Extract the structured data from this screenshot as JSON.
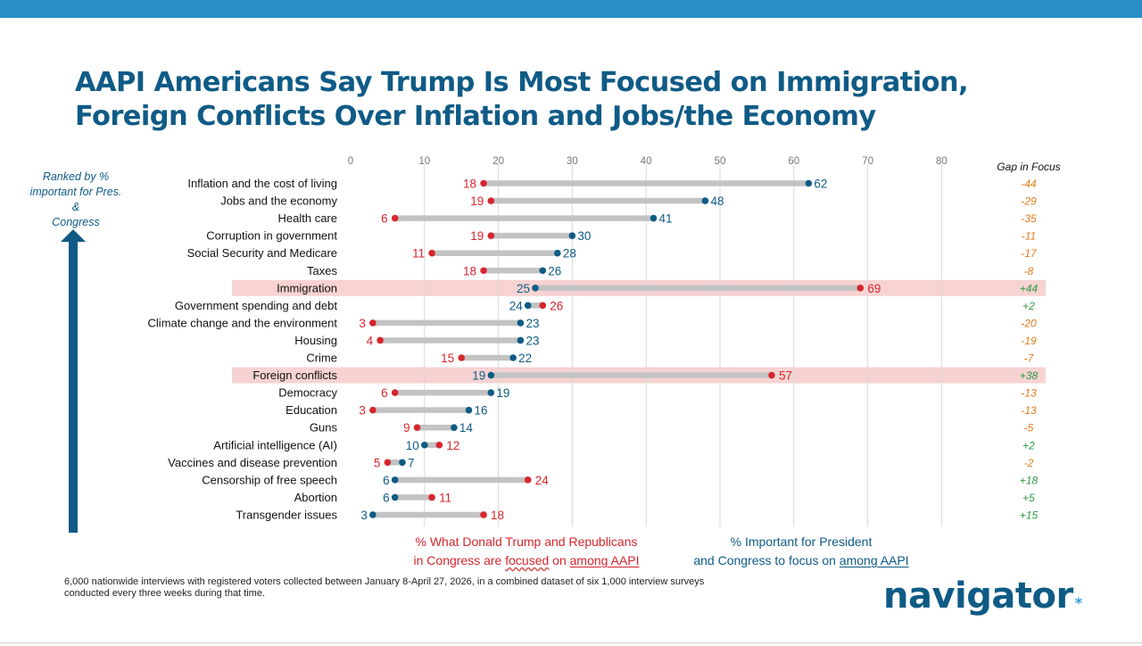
{
  "title_lines": [
    "AAPI Americans Say Trump Is Most Focused on Immigration,",
    "Foreign Conflicts Over Inflation and Jobs/the Economy"
  ],
  "side_label_lines": [
    "Ranked by %",
    "important for Pres. &",
    "Congress"
  ],
  "gap_header": "Gap in Focus",
  "legend": {
    "red_pre": "%  What Donald Trump and Republicans",
    "red_mid": "in Congress are ",
    "red_squig": "focused",
    "red_on": " on ",
    "red_ul": "among AAPI",
    "blue_line1": "% Important for President",
    "blue_pre": "and Congress to focus on ",
    "blue_ul": "among AAPI"
  },
  "footnote_lines": [
    "6,000 nationwide interviews with registered voters collected between January 8-April 27, 2026, in a combined dataset of six 1,000 interview surveys",
    "conducted every three weeks during that time."
  ],
  "logo": {
    "text": "navigator",
    "star": "*"
  },
  "colors": {
    "navy": "#0f5b86",
    "red": "#d6262e",
    "gray_bar": "#c3c3c3",
    "highlight": "#f6d3d2",
    "gap_negative": "#e07b1e",
    "gap_positive": "#2e9a43",
    "top_bar": "#2a8fc6",
    "grid": "#d9d9d9"
  },
  "chart_data": {
    "type": "dumbbell",
    "x_ticks": [
      0,
      10,
      20,
      30,
      40,
      50,
      60,
      70,
      80
    ],
    "xlim": [
      0,
      90
    ],
    "grid": true,
    "series": [
      {
        "name": "% What Donald Trump and Republicans in Congress are focused on among AAPI",
        "key": "focused"
      },
      {
        "name": "% Important for President and Congress to focus on among AAPI",
        "key": "important"
      }
    ],
    "rows": [
      {
        "label": "Inflation and the cost of living",
        "focused": 18,
        "important": 62,
        "gap": "-44",
        "highlight": false
      },
      {
        "label": "Jobs and the economy",
        "focused": 19,
        "important": 48,
        "gap": "-29",
        "highlight": false
      },
      {
        "label": "Health care",
        "focused": 6,
        "important": 41,
        "gap": "-35",
        "highlight": false
      },
      {
        "label": "Corruption in government",
        "focused": 19,
        "important": 30,
        "gap": "-11",
        "highlight": false
      },
      {
        "label": "Social Security and Medicare",
        "focused": 11,
        "important": 28,
        "gap": "-17",
        "highlight": false
      },
      {
        "label": "Taxes",
        "focused": 18,
        "important": 26,
        "gap": "-8",
        "highlight": false
      },
      {
        "label": "Immigration",
        "focused": 69,
        "important": 25,
        "gap": "+44",
        "highlight": true
      },
      {
        "label": "Government spending and debt",
        "focused": 26,
        "important": 24,
        "gap": "+2",
        "highlight": false
      },
      {
        "label": "Climate change and the environment",
        "focused": 3,
        "important": 23,
        "gap": "-20",
        "highlight": false
      },
      {
        "label": "Housing",
        "focused": 4,
        "important": 23,
        "gap": "-19",
        "highlight": false
      },
      {
        "label": "Crime",
        "focused": 15,
        "important": 22,
        "gap": "-7",
        "highlight": false
      },
      {
        "label": "Foreign conflicts",
        "focused": 57,
        "important": 19,
        "gap": "+38",
        "highlight": true
      },
      {
        "label": "Democracy",
        "focused": 6,
        "important": 19,
        "gap": "-13",
        "highlight": false
      },
      {
        "label": "Education",
        "focused": 3,
        "important": 16,
        "gap": "-13",
        "highlight": false
      },
      {
        "label": "Guns",
        "focused": 9,
        "important": 14,
        "gap": "-5",
        "highlight": false
      },
      {
        "label": "Artificial intelligence (AI)",
        "focused": 12,
        "important": 10,
        "gap": "+2",
        "highlight": false
      },
      {
        "label": "Vaccines and disease prevention",
        "focused": 5,
        "important": 7,
        "gap": "-2",
        "highlight": false
      },
      {
        "label": "Censorship of free speech",
        "focused": 24,
        "important": 6,
        "gap": "+18",
        "highlight": false
      },
      {
        "label": "Abortion",
        "focused": 11,
        "important": 6,
        "gap": "+5",
        "highlight": false
      },
      {
        "label": "Transgender issues",
        "focused": 18,
        "important": 3,
        "gap": "+15",
        "highlight": false
      }
    ]
  }
}
